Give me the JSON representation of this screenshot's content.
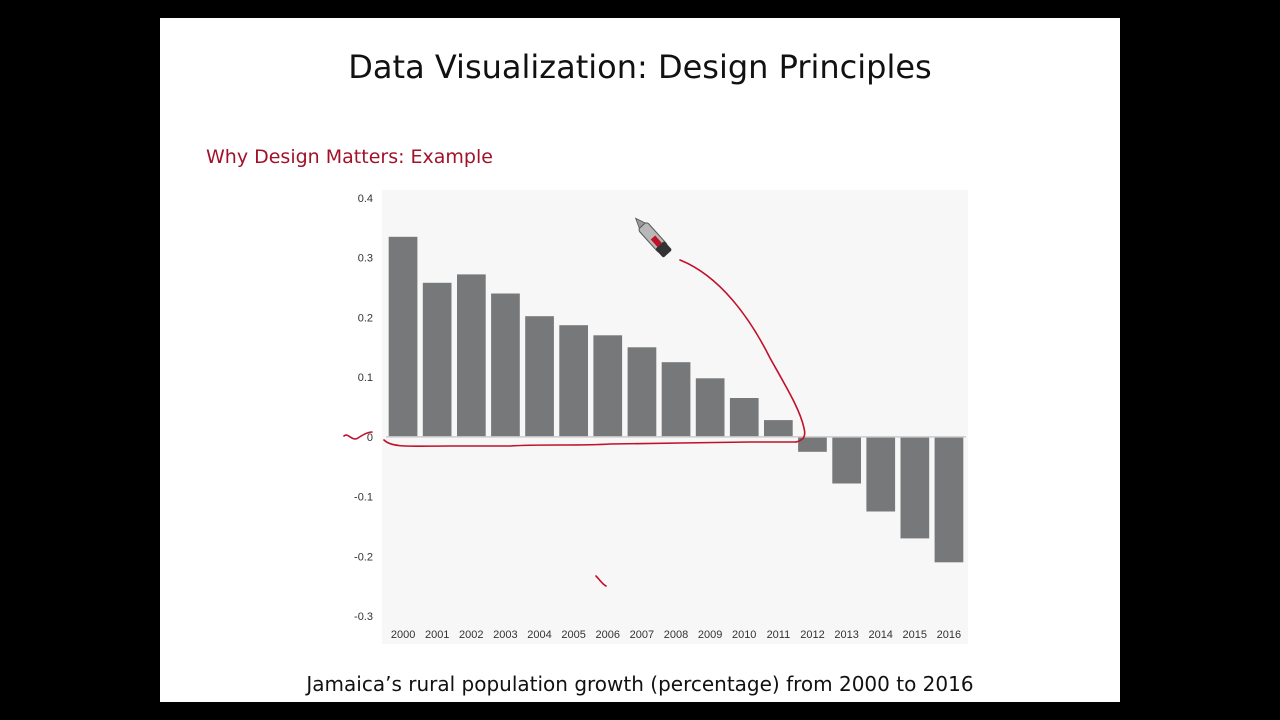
{
  "slide": {
    "title": "Data Visualization: Design Principles",
    "subtitle": "Why Design Matters: Example",
    "caption": "Jamaica’s rural population growth (percentage) from 2000 to 2016"
  },
  "colors": {
    "background": "#000000",
    "slide": "#ffffff",
    "subtitle": "#a2112a",
    "bar": "#777879",
    "plot_background": "#f7f7f7",
    "annotation_ink": "#c0102a"
  },
  "chart_data": {
    "type": "bar",
    "categories": [
      "2000",
      "2001",
      "2002",
      "2003",
      "2004",
      "2005",
      "2006",
      "2007",
      "2008",
      "2009",
      "2010",
      "2011",
      "2012",
      "2013",
      "2014",
      "2015",
      "2016"
    ],
    "values": [
      0.335,
      0.258,
      0.272,
      0.24,
      0.202,
      0.187,
      0.17,
      0.15,
      0.125,
      0.098,
      0.065,
      0.028,
      -0.025,
      -0.078,
      -0.125,
      -0.17,
      -0.21
    ],
    "ylim": [
      -0.3,
      0.4
    ],
    "yticks": [
      0.4,
      0.3,
      0.2,
      0.1,
      0,
      -0.1,
      -0.2,
      -0.3
    ],
    "ytick_labels": [
      "0.4",
      "0.3",
      "0.2",
      "0.1",
      "0",
      "-0.1",
      "-0.2",
      "-0.3"
    ],
    "grid": false,
    "legend": "none"
  },
  "annotations": {
    "pen_icon": "marker-pen-icon",
    "description": "hand-drawn red ink annotations"
  }
}
